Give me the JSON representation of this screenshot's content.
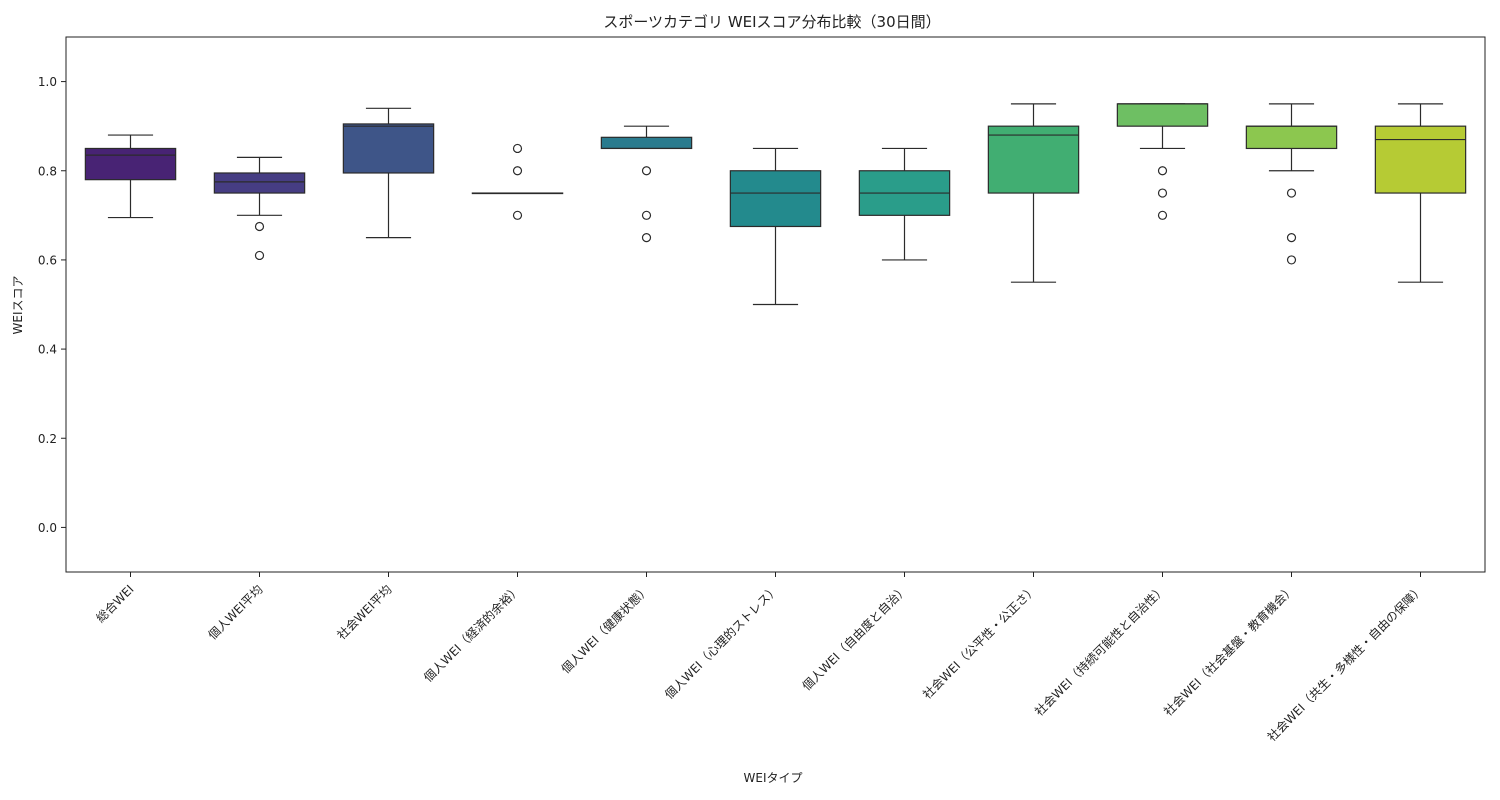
{
  "chart_data": {
    "type": "box",
    "title": "スポーツカテゴリ WEIスコア分布比較（30日間）",
    "xlabel": "WEIタイプ",
    "ylabel": "WEIスコア",
    "ylim": [
      -0.1,
      1.1
    ],
    "yticks": [
      "0.0",
      "0.2",
      "0.4",
      "0.6",
      "0.8",
      "1.0"
    ],
    "grid": false,
    "categories": [
      "総合WEI",
      "個人WEI平均",
      "社会WEI平均",
      "個人WEI（経済的余裕）",
      "個人WEI（健康状態）",
      "個人WEI（心理的ストレス）",
      "個人WEI（自由度と自治）",
      "社会WEI（公平性・公正さ）",
      "社会WEI（持続可能性と自治性）",
      "社会WEI（社会基盤・教育機会）",
      "社会WEI（共生・多様性・自由の保障）"
    ],
    "boxes": [
      {
        "whisker_low": 0.695,
        "q1": 0.78,
        "median": 0.835,
        "q3": 0.85,
        "whisker_high": 0.88,
        "outliers": [],
        "color": "#482374"
      },
      {
        "whisker_low": 0.7,
        "q1": 0.75,
        "median": 0.775,
        "q3": 0.795,
        "whisker_high": 0.83,
        "outliers": [
          0.675,
          0.61
        ],
        "color": "#463d83"
      },
      {
        "whisker_low": 0.65,
        "q1": 0.795,
        "median": 0.9,
        "q3": 0.905,
        "whisker_high": 0.94,
        "outliers": [],
        "color": "#3e5588"
      },
      {
        "whisker_low": 0.75,
        "q1": 0.75,
        "median": 0.75,
        "q3": 0.75,
        "whisker_high": 0.75,
        "outliers": [
          0.85,
          0.8,
          0.7
        ],
        "color": "#33678b"
      },
      {
        "whisker_low": 0.85,
        "q1": 0.85,
        "median": 0.85,
        "q3": 0.875,
        "whisker_high": 0.9,
        "outliers": [
          0.8,
          0.7,
          0.65
        ],
        "color": "#2a7b8e"
      },
      {
        "whisker_low": 0.5,
        "q1": 0.675,
        "median": 0.75,
        "q3": 0.8,
        "whisker_high": 0.85,
        "outliers": [],
        "color": "#238a8d"
      },
      {
        "whisker_low": 0.6,
        "q1": 0.7,
        "median": 0.75,
        "q3": 0.8,
        "whisker_high": 0.85,
        "outliers": [],
        "color": "#2a9d8a"
      },
      {
        "whisker_low": 0.55,
        "q1": 0.75,
        "median": 0.88,
        "q3": 0.9,
        "whisker_high": 0.95,
        "outliers": [],
        "color": "#41ae72"
      },
      {
        "whisker_low": 0.85,
        "q1": 0.9,
        "median": 0.95,
        "q3": 0.95,
        "whisker_high": 0.95,
        "outliers": [
          0.8,
          0.75,
          0.7
        ],
        "color": "#6ebf63"
      },
      {
        "whisker_low": 0.8,
        "q1": 0.85,
        "median": 0.9,
        "q3": 0.9,
        "whisker_high": 0.95,
        "outliers": [
          0.75,
          0.65,
          0.6
        ],
        "color": "#8cc74f"
      },
      {
        "whisker_low": 0.55,
        "q1": 0.75,
        "median": 0.87,
        "q3": 0.9,
        "whisker_high": 0.95,
        "outliers": [],
        "color": "#b6cb34"
      }
    ]
  }
}
